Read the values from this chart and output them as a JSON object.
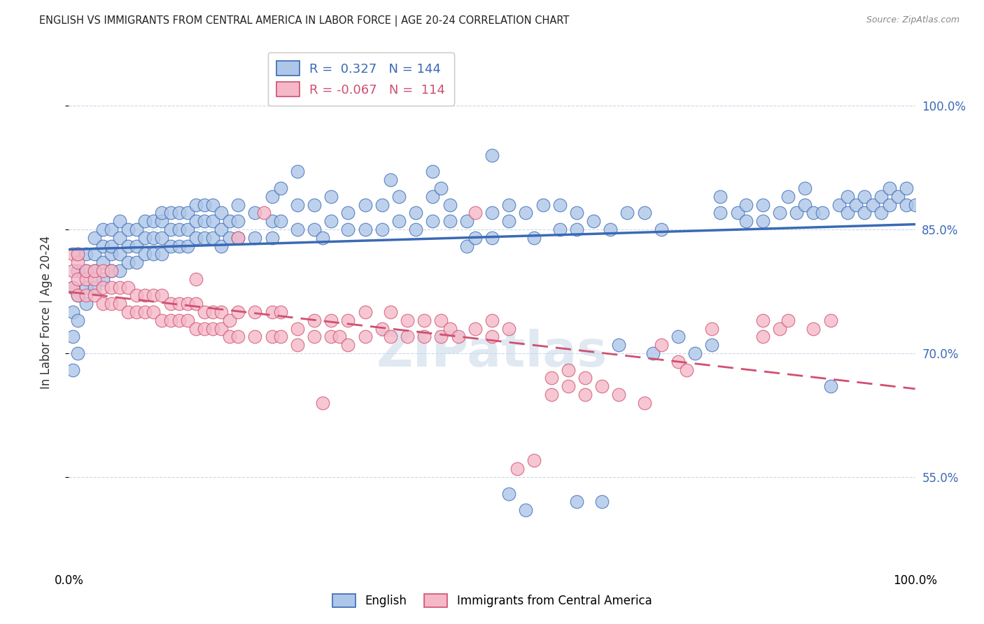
{
  "title": "ENGLISH VS IMMIGRANTS FROM CENTRAL AMERICA IN LABOR FORCE | AGE 20-24 CORRELATION CHART",
  "source": "Source: ZipAtlas.com",
  "ylabel": "In Labor Force | Age 20-24",
  "xlim": [
    0.0,
    1.0
  ],
  "ylim": [
    0.44,
    1.06
  ],
  "yticks": [
    0.55,
    0.7,
    0.85,
    1.0
  ],
  "ytick_labels": [
    "55.0%",
    "70.0%",
    "85.0%",
    "100.0%"
  ],
  "xticks": [
    0.0,
    0.1,
    0.2,
    0.3,
    0.4,
    0.5,
    0.6,
    0.7,
    0.8,
    0.9,
    1.0
  ],
  "xtick_labels": [
    "0.0%",
    "",
    "",
    "",
    "",
    "",
    "",
    "",
    "",
    "",
    "100.0%"
  ],
  "legend_english_R": "0.327",
  "legend_english_N": "144",
  "legend_immigrant_R": "-0.067",
  "legend_immigrant_N": "114",
  "blue_color": "#aec6e8",
  "pink_color": "#f4b8c8",
  "blue_line_color": "#3a6ab5",
  "pink_line_color": "#d05070",
  "blue_scatter": [
    [
      0.005,
      0.68
    ],
    [
      0.005,
      0.72
    ],
    [
      0.005,
      0.75
    ],
    [
      0.005,
      0.78
    ],
    [
      0.01,
      0.7
    ],
    [
      0.01,
      0.74
    ],
    [
      0.01,
      0.77
    ],
    [
      0.01,
      0.8
    ],
    [
      0.01,
      0.82
    ],
    [
      0.02,
      0.76
    ],
    [
      0.02,
      0.78
    ],
    [
      0.02,
      0.8
    ],
    [
      0.02,
      0.82
    ],
    [
      0.03,
      0.78
    ],
    [
      0.03,
      0.8
    ],
    [
      0.03,
      0.82
    ],
    [
      0.03,
      0.84
    ],
    [
      0.04,
      0.79
    ],
    [
      0.04,
      0.81
    ],
    [
      0.04,
      0.83
    ],
    [
      0.04,
      0.85
    ],
    [
      0.05,
      0.8
    ],
    [
      0.05,
      0.82
    ],
    [
      0.05,
      0.83
    ],
    [
      0.05,
      0.85
    ],
    [
      0.06,
      0.8
    ],
    [
      0.06,
      0.82
    ],
    [
      0.06,
      0.84
    ],
    [
      0.06,
      0.86
    ],
    [
      0.07,
      0.81
    ],
    [
      0.07,
      0.83
    ],
    [
      0.07,
      0.85
    ],
    [
      0.08,
      0.81
    ],
    [
      0.08,
      0.83
    ],
    [
      0.08,
      0.85
    ],
    [
      0.09,
      0.82
    ],
    [
      0.09,
      0.84
    ],
    [
      0.09,
      0.86
    ],
    [
      0.1,
      0.82
    ],
    [
      0.1,
      0.84
    ],
    [
      0.1,
      0.86
    ],
    [
      0.11,
      0.82
    ],
    [
      0.11,
      0.84
    ],
    [
      0.11,
      0.86
    ],
    [
      0.11,
      0.87
    ],
    [
      0.12,
      0.83
    ],
    [
      0.12,
      0.85
    ],
    [
      0.12,
      0.87
    ],
    [
      0.13,
      0.83
    ],
    [
      0.13,
      0.85
    ],
    [
      0.13,
      0.87
    ],
    [
      0.14,
      0.83
    ],
    [
      0.14,
      0.85
    ],
    [
      0.14,
      0.87
    ],
    [
      0.15,
      0.84
    ],
    [
      0.15,
      0.86
    ],
    [
      0.15,
      0.88
    ],
    [
      0.16,
      0.84
    ],
    [
      0.16,
      0.86
    ],
    [
      0.16,
      0.88
    ],
    [
      0.17,
      0.84
    ],
    [
      0.17,
      0.86
    ],
    [
      0.17,
      0.88
    ],
    [
      0.18,
      0.83
    ],
    [
      0.18,
      0.85
    ],
    [
      0.18,
      0.87
    ],
    [
      0.19,
      0.84
    ],
    [
      0.19,
      0.86
    ],
    [
      0.2,
      0.84
    ],
    [
      0.2,
      0.86
    ],
    [
      0.2,
      0.88
    ],
    [
      0.22,
      0.84
    ],
    [
      0.22,
      0.87
    ],
    [
      0.24,
      0.84
    ],
    [
      0.24,
      0.86
    ],
    [
      0.24,
      0.89
    ],
    [
      0.25,
      0.86
    ],
    [
      0.25,
      0.9
    ],
    [
      0.27,
      0.85
    ],
    [
      0.27,
      0.88
    ],
    [
      0.27,
      0.92
    ],
    [
      0.29,
      0.85
    ],
    [
      0.29,
      0.88
    ],
    [
      0.3,
      0.84
    ],
    [
      0.31,
      0.86
    ],
    [
      0.31,
      0.89
    ],
    [
      0.33,
      0.85
    ],
    [
      0.33,
      0.87
    ],
    [
      0.35,
      0.85
    ],
    [
      0.35,
      0.88
    ],
    [
      0.37,
      0.85
    ],
    [
      0.37,
      0.88
    ],
    [
      0.39,
      0.86
    ],
    [
      0.39,
      0.89
    ],
    [
      0.41,
      0.85
    ],
    [
      0.41,
      0.87
    ],
    [
      0.43,
      0.86
    ],
    [
      0.43,
      0.89
    ],
    [
      0.45,
      0.86
    ],
    [
      0.45,
      0.88
    ],
    [
      0.47,
      0.83
    ],
    [
      0.47,
      0.86
    ],
    [
      0.48,
      0.84
    ],
    [
      0.5,
      0.84
    ],
    [
      0.5,
      0.87
    ],
    [
      0.52,
      0.86
    ],
    [
      0.52,
      0.88
    ],
    [
      0.54,
      0.87
    ],
    [
      0.55,
      0.84
    ],
    [
      0.56,
      0.88
    ],
    [
      0.58,
      0.85
    ],
    [
      0.58,
      0.88
    ],
    [
      0.6,
      0.85
    ],
    [
      0.6,
      0.87
    ],
    [
      0.62,
      0.86
    ],
    [
      0.64,
      0.85
    ],
    [
      0.66,
      0.87
    ],
    [
      0.68,
      0.87
    ],
    [
      0.7,
      0.85
    ],
    [
      0.72,
      0.72
    ],
    [
      0.74,
      0.7
    ],
    [
      0.76,
      0.71
    ],
    [
      0.77,
      0.87
    ],
    [
      0.77,
      0.89
    ],
    [
      0.79,
      0.87
    ],
    [
      0.8,
      0.86
    ],
    [
      0.8,
      0.88
    ],
    [
      0.82,
      0.86
    ],
    [
      0.82,
      0.88
    ],
    [
      0.84,
      0.87
    ],
    [
      0.85,
      0.89
    ],
    [
      0.86,
      0.87
    ],
    [
      0.87,
      0.88
    ],
    [
      0.87,
      0.9
    ],
    [
      0.88,
      0.87
    ],
    [
      0.89,
      0.87
    ],
    [
      0.9,
      0.66
    ],
    [
      0.91,
      0.88
    ],
    [
      0.92,
      0.87
    ],
    [
      0.92,
      0.89
    ],
    [
      0.93,
      0.88
    ],
    [
      0.94,
      0.87
    ],
    [
      0.94,
      0.89
    ],
    [
      0.95,
      0.88
    ],
    [
      0.96,
      0.87
    ],
    [
      0.96,
      0.89
    ],
    [
      0.97,
      0.88
    ],
    [
      0.97,
      0.9
    ],
    [
      0.98,
      0.89
    ],
    [
      0.99,
      0.88
    ],
    [
      0.99,
      0.9
    ],
    [
      1.0,
      0.88
    ],
    [
      0.5,
      0.94
    ],
    [
      0.43,
      0.92
    ],
    [
      0.44,
      0.9
    ],
    [
      0.38,
      0.91
    ],
    [
      0.52,
      0.53
    ],
    [
      0.54,
      0.51
    ],
    [
      0.6,
      0.52
    ],
    [
      0.63,
      0.52
    ],
    [
      0.65,
      0.71
    ],
    [
      0.69,
      0.7
    ]
  ],
  "pink_scatter": [
    [
      0.005,
      0.78
    ],
    [
      0.005,
      0.8
    ],
    [
      0.005,
      0.82
    ],
    [
      0.01,
      0.77
    ],
    [
      0.01,
      0.79
    ],
    [
      0.01,
      0.81
    ],
    [
      0.01,
      0.82
    ],
    [
      0.02,
      0.77
    ],
    [
      0.02,
      0.79
    ],
    [
      0.02,
      0.8
    ],
    [
      0.03,
      0.77
    ],
    [
      0.03,
      0.79
    ],
    [
      0.03,
      0.8
    ],
    [
      0.04,
      0.76
    ],
    [
      0.04,
      0.78
    ],
    [
      0.04,
      0.8
    ],
    [
      0.05,
      0.76
    ],
    [
      0.05,
      0.78
    ],
    [
      0.05,
      0.8
    ],
    [
      0.06,
      0.76
    ],
    [
      0.06,
      0.78
    ],
    [
      0.07,
      0.75
    ],
    [
      0.07,
      0.78
    ],
    [
      0.08,
      0.75
    ],
    [
      0.08,
      0.77
    ],
    [
      0.09,
      0.75
    ],
    [
      0.09,
      0.77
    ],
    [
      0.1,
      0.75
    ],
    [
      0.1,
      0.77
    ],
    [
      0.11,
      0.74
    ],
    [
      0.11,
      0.77
    ],
    [
      0.12,
      0.74
    ],
    [
      0.12,
      0.76
    ],
    [
      0.13,
      0.74
    ],
    [
      0.13,
      0.76
    ],
    [
      0.14,
      0.74
    ],
    [
      0.14,
      0.76
    ],
    [
      0.15,
      0.73
    ],
    [
      0.15,
      0.76
    ],
    [
      0.15,
      0.79
    ],
    [
      0.16,
      0.73
    ],
    [
      0.16,
      0.75
    ],
    [
      0.17,
      0.73
    ],
    [
      0.17,
      0.75
    ],
    [
      0.18,
      0.73
    ],
    [
      0.18,
      0.75
    ],
    [
      0.19,
      0.72
    ],
    [
      0.19,
      0.74
    ],
    [
      0.2,
      0.72
    ],
    [
      0.2,
      0.75
    ],
    [
      0.2,
      0.84
    ],
    [
      0.22,
      0.72
    ],
    [
      0.22,
      0.75
    ],
    [
      0.23,
      0.87
    ],
    [
      0.24,
      0.72
    ],
    [
      0.24,
      0.75
    ],
    [
      0.25,
      0.72
    ],
    [
      0.25,
      0.75
    ],
    [
      0.27,
      0.71
    ],
    [
      0.27,
      0.73
    ],
    [
      0.29,
      0.72
    ],
    [
      0.29,
      0.74
    ],
    [
      0.3,
      0.64
    ],
    [
      0.31,
      0.72
    ],
    [
      0.31,
      0.74
    ],
    [
      0.32,
      0.72
    ],
    [
      0.33,
      0.71
    ],
    [
      0.33,
      0.74
    ],
    [
      0.35,
      0.72
    ],
    [
      0.35,
      0.75
    ],
    [
      0.37,
      0.73
    ],
    [
      0.38,
      0.72
    ],
    [
      0.38,
      0.75
    ],
    [
      0.4,
      0.72
    ],
    [
      0.4,
      0.74
    ],
    [
      0.42,
      0.72
    ],
    [
      0.42,
      0.74
    ],
    [
      0.44,
      0.72
    ],
    [
      0.44,
      0.74
    ],
    [
      0.45,
      0.73
    ],
    [
      0.46,
      0.72
    ],
    [
      0.48,
      0.73
    ],
    [
      0.48,
      0.87
    ],
    [
      0.5,
      0.74
    ],
    [
      0.5,
      0.72
    ],
    [
      0.52,
      0.73
    ],
    [
      0.53,
      0.56
    ],
    [
      0.55,
      0.57
    ],
    [
      0.57,
      0.65
    ],
    [
      0.57,
      0.67
    ],
    [
      0.59,
      0.66
    ],
    [
      0.59,
      0.68
    ],
    [
      0.61,
      0.65
    ],
    [
      0.61,
      0.67
    ],
    [
      0.63,
      0.66
    ],
    [
      0.65,
      0.65
    ],
    [
      0.68,
      0.64
    ],
    [
      0.7,
      0.71
    ],
    [
      0.72,
      0.69
    ],
    [
      0.73,
      0.68
    ],
    [
      0.76,
      0.73
    ],
    [
      0.82,
      0.74
    ],
    [
      0.82,
      0.72
    ],
    [
      0.84,
      0.73
    ],
    [
      0.85,
      0.74
    ],
    [
      0.88,
      0.73
    ],
    [
      0.9,
      0.74
    ]
  ],
  "watermark": "ZIPatlas",
  "background_color": "#ffffff",
  "grid_color": "#c8d8e8"
}
